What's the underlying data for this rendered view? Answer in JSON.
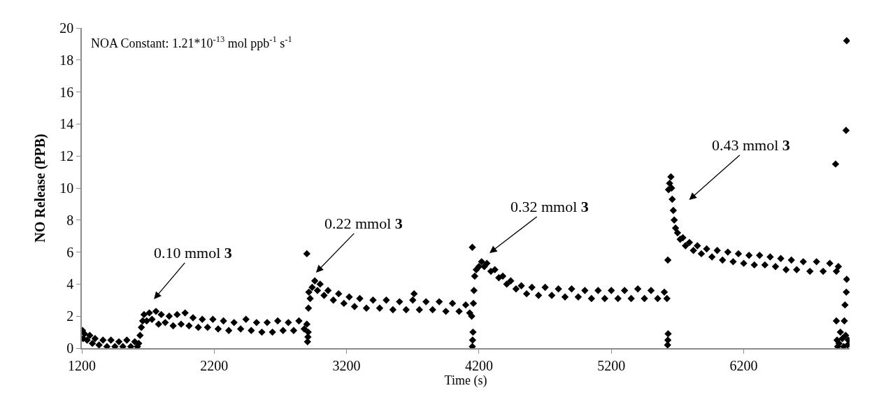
{
  "chart_data": {
    "type": "scatter",
    "xlabel": "Time (s)",
    "ylabel": "NO Release (PPB)",
    "annotations": [
      "NOA Constant: 1.21*10$^{-13}$ mol ppb$^{-1}$ s$^{-1}$",
      "0.10 mmol 3",
      "0.22 mmol 3",
      "0.32 mmol 3",
      "0.43 mmol 3"
    ],
    "x": [
      1205,
      1210,
      1220,
      1240,
      1260,
      1280,
      1300,
      1330,
      1360,
      1390,
      1420,
      1450,
      1480,
      1510,
      1540,
      1570,
      1600,
      1620,
      1630,
      1640,
      1650,
      1660,
      1670,
      1690,
      1710,
      1730,
      1760,
      1780,
      1800,
      1830,
      1860,
      1890,
      1920,
      1950,
      1980,
      2010,
      2040,
      2080,
      2110,
      2150,
      2190,
      2230,
      2270,
      2310,
      2350,
      2400,
      2440,
      2480,
      2520,
      2560,
      2600,
      2640,
      2680,
      2720,
      2760,
      2800,
      2840,
      2880,
      2900,
      2900,
      2905,
      2908,
      2910,
      2912,
      2915,
      2925,
      2940,
      2960,
      2980,
      3000,
      3030,
      3060,
      3100,
      3140,
      3180,
      3220,
      3260,
      3300,
      3350,
      3400,
      3450,
      3500,
      3550,
      3600,
      3650,
      3700,
      3710,
      3750,
      3800,
      3850,
      3900,
      3950,
      4000,
      4050,
      4100,
      4130,
      4145,
      4150,
      4150,
      4152,
      4155,
      4158,
      4162,
      4168,
      4180,
      4200,
      4220,
      4240,
      4260,
      4290,
      4320,
      4350,
      4380,
      4410,
      4440,
      4480,
      4520,
      4560,
      4600,
      4650,
      4700,
      4750,
      4800,
      4850,
      4900,
      4950,
      5000,
      5050,
      5100,
      5150,
      5200,
      5250,
      5300,
      5350,
      5400,
      5450,
      5500,
      5550,
      5600,
      5620,
      5625,
      5627,
      5627,
      5629,
      5632,
      5640,
      5650,
      5655,
      5660,
      5668,
      5675,
      5685,
      5700,
      5720,
      5740,
      5760,
      5790,
      5820,
      5850,
      5880,
      5920,
      5960,
      6000,
      6040,
      6080,
      6120,
      6160,
      6200,
      6240,
      6280,
      6320,
      6360,
      6400,
      6440,
      6480,
      6520,
      6560,
      6600,
      6650,
      6700,
      6750,
      6800,
      6850,
      6900,
      6915,
      6894,
      6973,
      6978,
      6900,
      6905,
      6910,
      6920,
      6930,
      6945,
      6955,
      6960,
      6965,
      6970,
      6975,
      6978,
      6985,
      6990
    ],
    "series": [
      {
        "color": "#000000",
        "values": [
          1.1,
          0.6,
          0.9,
          0.5,
          0.8,
          0.3,
          0.6,
          0.2,
          0.5,
          0.1,
          0.5,
          0.1,
          0.4,
          0.1,
          0.5,
          0.1,
          0.4,
          0.1,
          0.3,
          0.8,
          1.3,
          1.7,
          2.1,
          1.7,
          2.2,
          1.8,
          2.3,
          1.5,
          2.1,
          1.6,
          2.0,
          1.4,
          2.1,
          1.5,
          2.2,
          1.4,
          1.9,
          1.3,
          1.8,
          1.3,
          1.8,
          1.2,
          1.7,
          1.1,
          1.6,
          1.2,
          1.8,
          1.1,
          1.6,
          1.0,
          1.6,
          1.0,
          1.7,
          1.1,
          1.6,
          1.1,
          1.7,
          1.2,
          1.5,
          5.9,
          0.4,
          0.7,
          1.0,
          2.5,
          3.5,
          3.1,
          3.8,
          4.2,
          3.6,
          4.0,
          3.3,
          3.6,
          3.0,
          3.4,
          2.8,
          3.2,
          2.6,
          3.1,
          2.5,
          3.0,
          2.5,
          3.0,
          2.4,
          2.9,
          2.4,
          3.0,
          3.4,
          2.4,
          2.9,
          2.4,
          2.9,
          2.3,
          2.8,
          2.3,
          2.7,
          2.2,
          2.0,
          0.1,
          6.3,
          0.5,
          1.0,
          2.8,
          3.6,
          4.5,
          4.9,
          5.1,
          5.4,
          5.1,
          5.3,
          4.8,
          4.9,
          4.4,
          4.5,
          4.0,
          4.2,
          3.7,
          3.9,
          3.4,
          3.8,
          3.3,
          3.8,
          3.3,
          3.7,
          3.2,
          3.7,
          3.2,
          3.6,
          3.1,
          3.6,
          3.1,
          3.6,
          3.1,
          3.6,
          3.1,
          3.7,
          3.1,
          3.6,
          3.1,
          3.5,
          3.1,
          0.2,
          0.5,
          5.5,
          0.9,
          9.9,
          10.3,
          10.7,
          10.0,
          9.3,
          8.6,
          8.0,
          7.5,
          7.2,
          6.8,
          6.9,
          6.4,
          6.6,
          6.1,
          6.4,
          5.9,
          6.2,
          5.7,
          6.1,
          5.5,
          6.0,
          5.4,
          5.9,
          5.3,
          5.8,
          5.2,
          5.8,
          5.2,
          5.7,
          5.1,
          5.6,
          4.9,
          5.5,
          4.9,
          5.4,
          4.8,
          5.4,
          4.8,
          5.3,
          4.8,
          5.1,
          11.5,
          13.6,
          19.2,
          1.7,
          0.5,
          0.1,
          0.3,
          1.0,
          0.6,
          0.1,
          1.7,
          2.7,
          0.8,
          3.5,
          4.3,
          0.2,
          0.5
        ]
      }
    ],
    "xlim": [
      1200,
      7000
    ],
    "xticks": [
      1200,
      2200,
      3200,
      4200,
      5200,
      6200
    ],
    "ylim": [
      0,
      20
    ],
    "yticks": [
      0,
      2,
      4,
      6,
      8,
      10,
      12,
      14,
      16,
      18,
      20
    ],
    "marker": "diamond"
  }
}
